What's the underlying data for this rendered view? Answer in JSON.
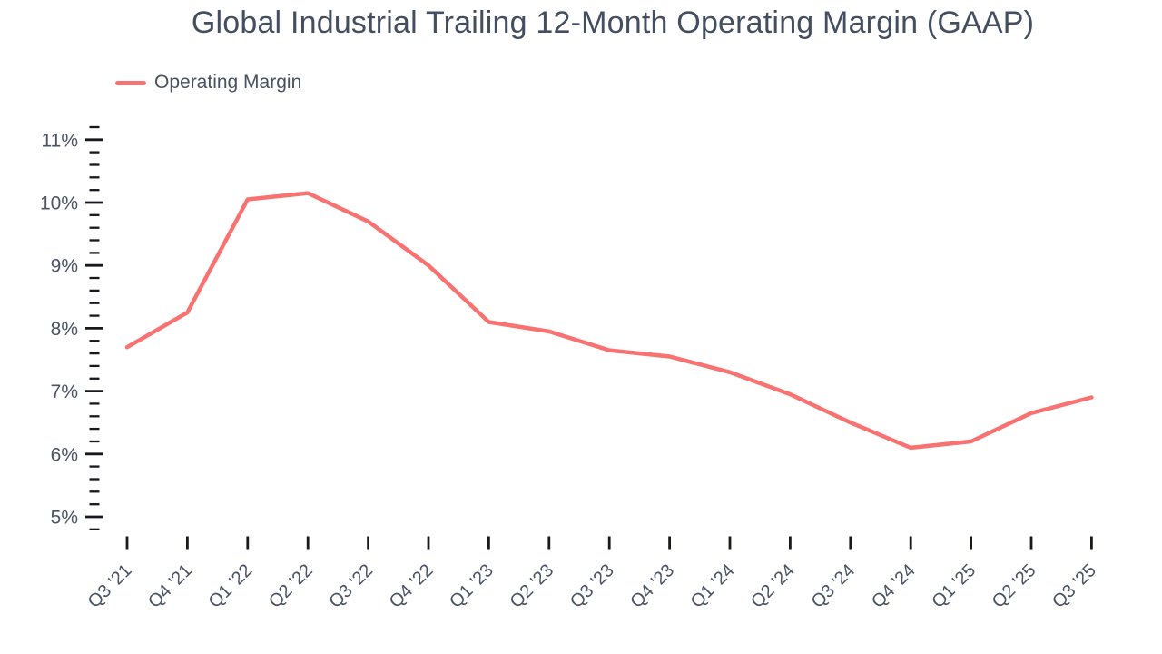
{
  "chart_data": {
    "type": "line",
    "title": "Global Industrial Trailing 12-Month Operating Margin (GAAP)",
    "legend": {
      "position": "top-left",
      "entries": [
        "Operating Margin"
      ]
    },
    "categories": [
      "Q3 '21",
      "Q4 '21",
      "Q1 '22",
      "Q2 '22",
      "Q3 '22",
      "Q4 '22",
      "Q1 '23",
      "Q2 '23",
      "Q3 '23",
      "Q4 '23",
      "Q1 '24",
      "Q2 '24",
      "Q3 '24",
      "Q4 '24",
      "Q1 '25",
      "Q2 '25",
      "Q3 '25"
    ],
    "series": [
      {
        "name": "Operating Margin",
        "color": "#f87272",
        "values": [
          7.7,
          8.25,
          10.05,
          10.15,
          9.7,
          9.0,
          8.1,
          7.95,
          7.65,
          7.55,
          7.3,
          6.95,
          6.5,
          6.1,
          6.2,
          6.65,
          6.9
        ]
      }
    ],
    "y_axis": {
      "unit": "%",
      "min": 4.8,
      "max": 11.2,
      "major_tick_step": 1,
      "minor_tick_step": 0.2,
      "major_tick_labels": [
        "5%",
        "6%",
        "7%",
        "8%",
        "9%",
        "10%",
        "11%"
      ]
    },
    "x_axis": {
      "tick_label_rotation_deg": 45
    },
    "grid": false,
    "colors": {
      "background": "#ffffff",
      "line": "#f87272",
      "title_text": "#434e60",
      "axis_text": "#4a5364",
      "tick": "#17191d"
    }
  }
}
